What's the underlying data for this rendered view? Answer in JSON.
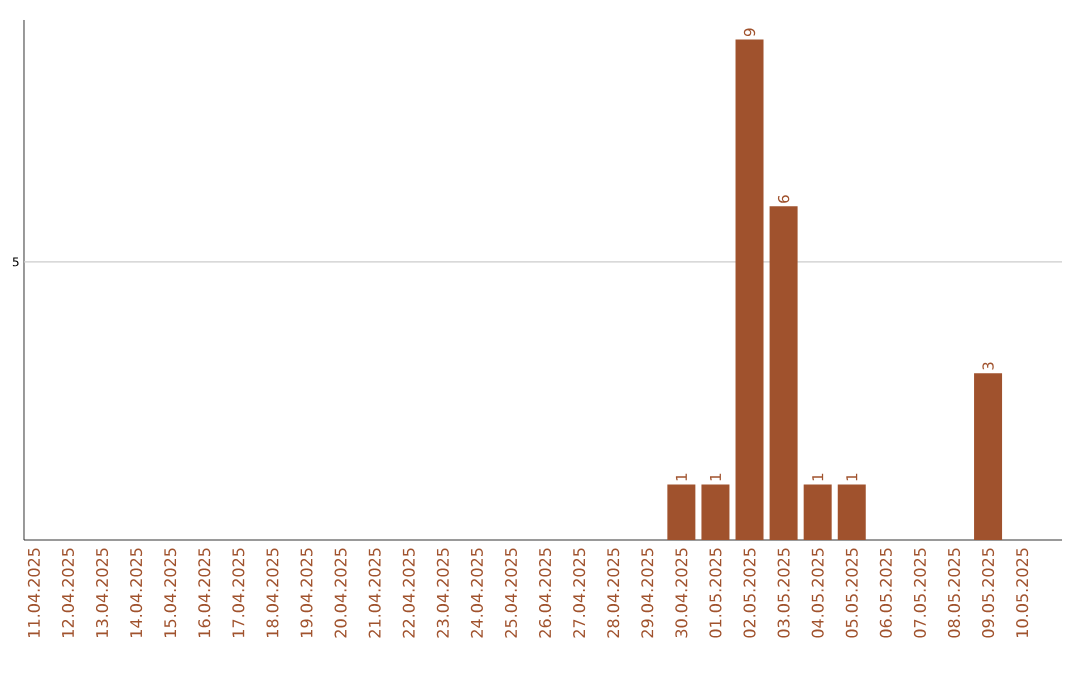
{
  "chart_data": {
    "type": "bar",
    "categories": [
      "11.04.2025",
      "12.04.2025",
      "13.04.2025",
      "14.04.2025",
      "15.04.2025",
      "16.04.2025",
      "17.04.2025",
      "18.04.2025",
      "19.04.2025",
      "20.04.2025",
      "21.04.2025",
      "22.04.2025",
      "23.04.2025",
      "24.04.2025",
      "25.04.2025",
      "26.04.2025",
      "27.04.2025",
      "28.04.2025",
      "29.04.2025",
      "30.04.2025",
      "01.05.2025",
      "02.05.2025",
      "03.05.2025",
      "04.05.2025",
      "05.05.2025",
      "06.05.2025",
      "07.05.2025",
      "08.05.2025",
      "09.05.2025",
      "10.05.2025"
    ],
    "values": [
      null,
      null,
      null,
      null,
      null,
      null,
      null,
      null,
      null,
      null,
      null,
      null,
      null,
      null,
      null,
      null,
      null,
      null,
      null,
      1,
      1,
      9,
      6,
      1,
      1,
      null,
      null,
      null,
      3,
      null
    ],
    "ylim": [
      0,
      9.35
    ],
    "value_labels": [
      null,
      null,
      null,
      null,
      null,
      null,
      null,
      null,
      null,
      null,
      null,
      null,
      null,
      null,
      null,
      null,
      null,
      null,
      null,
      "1",
      "1",
      "9",
      "6",
      "1",
      "1",
      null,
      null,
      null,
      "3",
      null
    ],
    "color": "#a0522d",
    "ref_lines": [
      {
        "axis": "y",
        "value": 5,
        "label": "5",
        "color": "#cccccc"
      }
    ]
  }
}
